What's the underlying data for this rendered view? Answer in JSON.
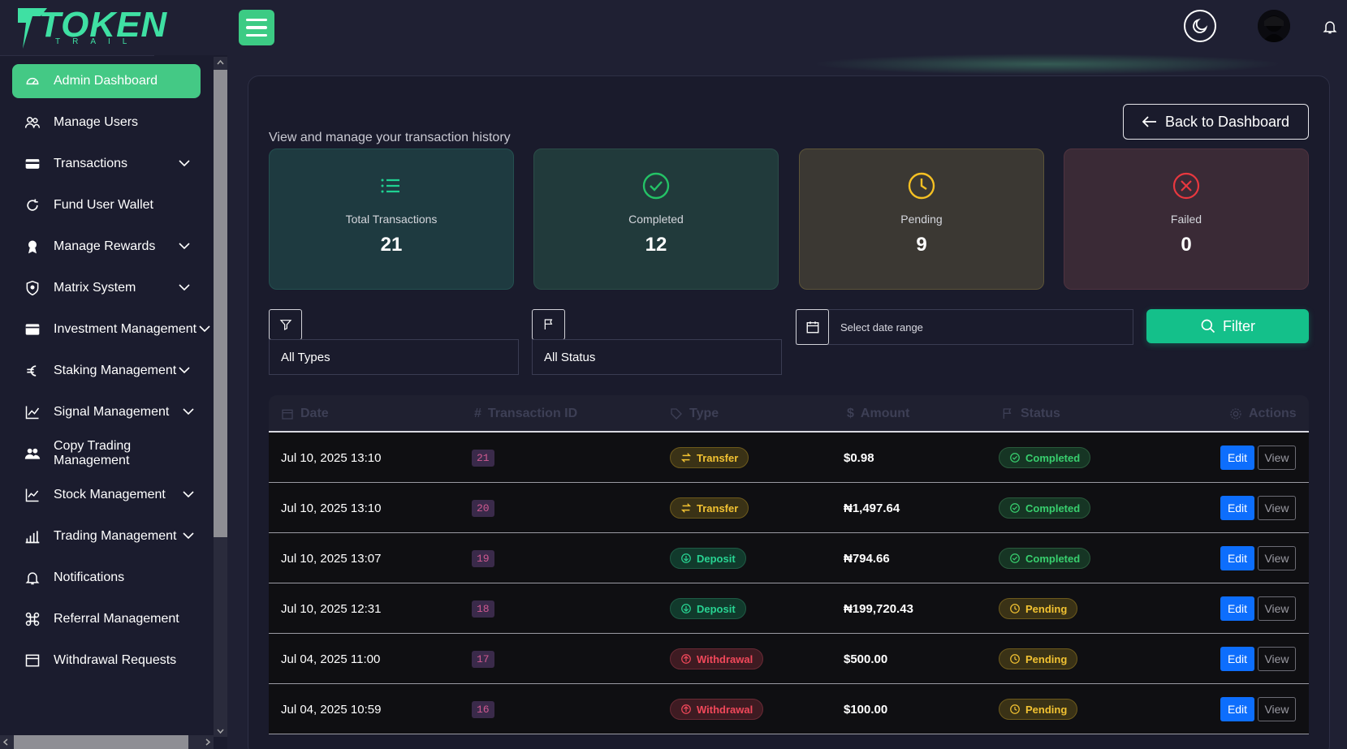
{
  "brand": {
    "name": "TOKEN",
    "tagline": "TRAIL"
  },
  "sidebar": {
    "items": [
      {
        "label": "Admin Dashboard",
        "icon": "dashboard-icon",
        "active": true,
        "chevron": false
      },
      {
        "label": "Manage Users",
        "icon": "users-icon",
        "chevron": false
      },
      {
        "label": "Transactions",
        "icon": "card-icon",
        "chevron": true
      },
      {
        "label": "Fund User Wallet",
        "icon": "refresh-icon",
        "chevron": false
      },
      {
        "label": "Manage Rewards",
        "icon": "award-icon",
        "chevron": true
      },
      {
        "label": "Matrix System",
        "icon": "shield-icon",
        "chevron": true
      },
      {
        "label": "Investment Management",
        "icon": "wallet-icon",
        "chevron": true
      },
      {
        "label": "Staking Management",
        "icon": "euro-icon",
        "chevron": true
      },
      {
        "label": "Signal Management",
        "icon": "chart-line-icon",
        "chevron": true
      },
      {
        "label": "Copy Trading Management",
        "icon": "group-icon",
        "chevron": false
      },
      {
        "label": "Stock Management",
        "icon": "stock-chart-icon",
        "chevron": true
      },
      {
        "label": "Trading Management",
        "icon": "bar-chart-icon",
        "chevron": true
      },
      {
        "label": "Notifications",
        "icon": "bell-icon",
        "chevron": false
      },
      {
        "label": "Referral Management",
        "icon": "command-icon",
        "chevron": false
      },
      {
        "label": "Withdrawal Requests",
        "icon": "window-icon",
        "chevron": false
      }
    ]
  },
  "header": {
    "back_label": "Back to Dashboard",
    "subtitle": "View and manage your transaction history"
  },
  "stats": [
    {
      "label": "Total Transactions",
      "value": "21",
      "icon": "list-icon",
      "color": "#1fd191",
      "bg": "#1e3a40",
      "border": "#245050"
    },
    {
      "label": "Completed",
      "value": "12",
      "icon": "check-circle-icon",
      "color": "#24c266",
      "bg": "#213a3b",
      "border": "#2b4c48"
    },
    {
      "label": "Pending",
      "value": "9",
      "icon": "clock-icon",
      "color": "#f5c023",
      "bg": "#3b3833",
      "border": "#5c5438"
    },
    {
      "label": "Failed",
      "value": "0",
      "icon": "x-circle-icon",
      "color": "#e8383f",
      "bg": "#3a2a36",
      "border": "#4f3340"
    }
  ],
  "filters": {
    "type_value": "All Types",
    "status_value": "All Status",
    "date_placeholder": "Select date range",
    "filter_label": "Filter"
  },
  "table": {
    "headers": {
      "date": "Date",
      "id": "Transaction ID",
      "type": "Type",
      "amount": "Amount",
      "status": "Status",
      "actions": "Actions"
    },
    "id_symbol": "#",
    "amount_symbol": "$",
    "edit_label": "Edit",
    "view_label": "View",
    "rows": [
      {
        "date": "Jul 10, 2025 13:10",
        "id": "21",
        "type": "Transfer",
        "type_class": "transfer",
        "amount": "$0.98",
        "status": "Completed",
        "status_class": "completed"
      },
      {
        "date": "Jul 10, 2025 13:10",
        "id": "20",
        "type": "Transfer",
        "type_class": "transfer",
        "amount": "₦1,497.64",
        "status": "Completed",
        "status_class": "completed"
      },
      {
        "date": "Jul 10, 2025 13:07",
        "id": "19",
        "type": "Deposit",
        "type_class": "deposit",
        "amount": "₦794.66",
        "status": "Completed",
        "status_class": "completed"
      },
      {
        "date": "Jul 10, 2025 12:31",
        "id": "18",
        "type": "Deposit",
        "type_class": "deposit",
        "amount": "₦199,720.43",
        "status": "Pending",
        "status_class": "pending"
      },
      {
        "date": "Jul 04, 2025 11:00",
        "id": "17",
        "type": "Withdrawal",
        "type_class": "withdrawal",
        "amount": "$500.00",
        "status": "Pending",
        "status_class": "pending"
      },
      {
        "date": "Jul 04, 2025 10:59",
        "id": "16",
        "type": "Withdrawal",
        "type_class": "withdrawal",
        "amount": "$100.00",
        "status": "Pending",
        "status_class": "pending"
      }
    ]
  }
}
